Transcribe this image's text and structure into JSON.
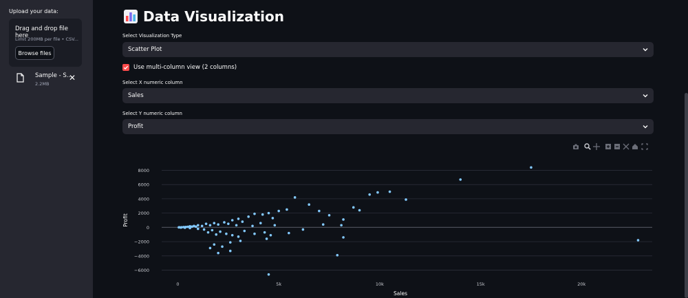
{
  "sidebar": {
    "upload_label": "Upload your data:",
    "dropzone_title": "Drag and drop file here",
    "dropzone_limit": "Limit 200MB per file • CSV...",
    "browse_label": "Browse files",
    "file_name": "Sample - S...",
    "file_size": "2.2MB"
  },
  "main": {
    "title": "Data Visualization",
    "viz_type_label": "Select Visualization Type",
    "viz_type_value": "Scatter Plot",
    "multicolumn_label": "Use multi-column view (2 columns)",
    "multicolumn_checked": true,
    "x_label": "Select X numeric column",
    "x_value": "Sales",
    "y_label": "Select Y numeric column",
    "y_value": "Profit"
  },
  "colors": {
    "accent": "#ff4b4b",
    "point": "#83c9ff",
    "sidebar": "#262730",
    "bg": "#0e1117"
  },
  "modebar_icons": [
    "camera-icon",
    "zoom-icon",
    "pan-icon",
    "zoom-in-icon",
    "zoom-out-icon",
    "autoscale-icon",
    "home-icon",
    "fullscreen-icon"
  ],
  "chart_data": {
    "type": "scatter",
    "xlabel": "Sales",
    "ylabel": "Profit",
    "xlim": [
      -800,
      23500
    ],
    "ylim": [
      -7200,
      9200
    ],
    "x_ticks": [
      0,
      5000,
      10000,
      15000,
      20000
    ],
    "x_tick_labels": [
      "0",
      "5k",
      "10k",
      "15k",
      "20k"
    ],
    "y_ticks": [
      -6000,
      -4000,
      -2000,
      0,
      2000,
      4000,
      6000,
      8000
    ],
    "y_tick_labels": [
      "−6000",
      "−4000",
      "−2000",
      "0",
      "2000",
      "4000",
      "6000",
      "8000"
    ],
    "points": [
      [
        17500,
        8400
      ],
      [
        14000,
        6700
      ],
      [
        10500,
        5000
      ],
      [
        9900,
        4900
      ],
      [
        9500,
        4600
      ],
      [
        11300,
        3900
      ],
      [
        6500,
        3200
      ],
      [
        8700,
        2800
      ],
      [
        9000,
        2400
      ],
      [
        7000,
        2300
      ],
      [
        5400,
        2500
      ],
      [
        5000,
        2300
      ],
      [
        4500,
        2000
      ],
      [
        4200,
        1800
      ],
      [
        3800,
        1900
      ],
      [
        3500,
        1500
      ],
      [
        3000,
        1200
      ],
      [
        2700,
        1000
      ],
      [
        4700,
        1300
      ],
      [
        3200,
        800
      ],
      [
        4100,
        600
      ],
      [
        8200,
        1100
      ],
      [
        7500,
        1700
      ],
      [
        8100,
        300
      ],
      [
        4800,
        300
      ],
      [
        3700,
        200
      ],
      [
        2900,
        300
      ],
      [
        2500,
        500
      ],
      [
        2300,
        700
      ],
      [
        2000,
        400
      ],
      [
        1800,
        600
      ],
      [
        1600,
        300
      ],
      [
        1400,
        500
      ],
      [
        1200,
        200
      ],
      [
        1000,
        300
      ],
      [
        900,
        100
      ],
      [
        800,
        200
      ],
      [
        700,
        100
      ],
      [
        600,
        150
      ],
      [
        500,
        80
      ],
      [
        400,
        60
      ],
      [
        300,
        40
      ],
      [
        200,
        20
      ],
      [
        100,
        10
      ],
      [
        50,
        5
      ],
      [
        150,
        -30
      ],
      [
        350,
        -50
      ],
      [
        600,
        -100
      ],
      [
        1000,
        -200
      ],
      [
        1300,
        -300
      ],
      [
        1700,
        -400
      ],
      [
        2100,
        -600
      ],
      [
        2400,
        -900
      ],
      [
        2700,
        -1100
      ],
      [
        3000,
        -1300
      ],
      [
        1900,
        -1000
      ],
      [
        1500,
        -700
      ],
      [
        3300,
        -500
      ],
      [
        3800,
        -900
      ],
      [
        4300,
        -700
      ],
      [
        4600,
        -1100
      ],
      [
        4400,
        -1600
      ],
      [
        3100,
        -1900
      ],
      [
        2600,
        -2100
      ],
      [
        2200,
        -2700
      ],
      [
        1800,
        -2400
      ],
      [
        1600,
        -2900
      ],
      [
        2000,
        -3600
      ],
      [
        2600,
        -3300
      ],
      [
        4500,
        -6600
      ],
      [
        7900,
        -3900
      ],
      [
        8200,
        -1400
      ],
      [
        22800,
        -1800
      ],
      [
        5800,
        4200
      ],
      [
        6200,
        -300
      ],
      [
        7200,
        400
      ],
      [
        5500,
        -800
      ]
    ]
  }
}
